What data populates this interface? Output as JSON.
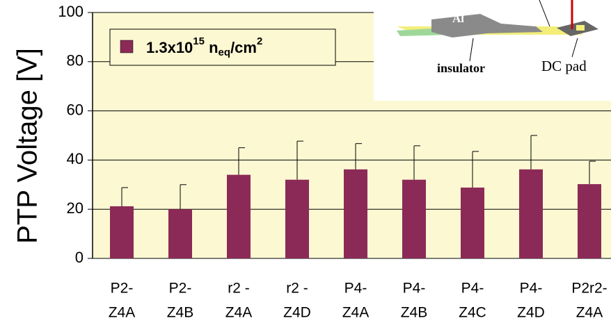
{
  "chart_data": {
    "type": "bar",
    "y_axis_label": "PTP Voltage [V]",
    "categories": [
      [
        "P2-",
        "Z4A"
      ],
      [
        "P2-",
        "Z4B"
      ],
      [
        "r2 -",
        "Z4A"
      ],
      [
        "r2 -",
        "Z4D"
      ],
      [
        "P4-",
        "Z4A"
      ],
      [
        "P4-",
        "Z4B"
      ],
      [
        "P4-",
        "Z4C"
      ],
      [
        "P4-",
        "Z4D"
      ],
      [
        "P2r2-",
        "Z4A"
      ]
    ],
    "series": [
      {
        "legend_parts": [
          "1.3x10",
          "15",
          " n",
          "eq",
          "/cm",
          "2"
        ],
        "color": "#8b2a57",
        "values": [
          21.2,
          20,
          34,
          32,
          36.2,
          32,
          28.8,
          36.2,
          30.2
        ],
        "errors": [
          7.6,
          10,
          11,
          15.7,
          10.5,
          13.8,
          14.7,
          13.8,
          9.3
        ]
      }
    ],
    "ylim": [
      0,
      100
    ],
    "yticks": [
      0,
      20,
      40,
      60,
      80,
      100
    ],
    "grid": true,
    "inset": {
      "labels": [
        "Al",
        "insulator",
        "DC pad"
      ]
    }
  }
}
